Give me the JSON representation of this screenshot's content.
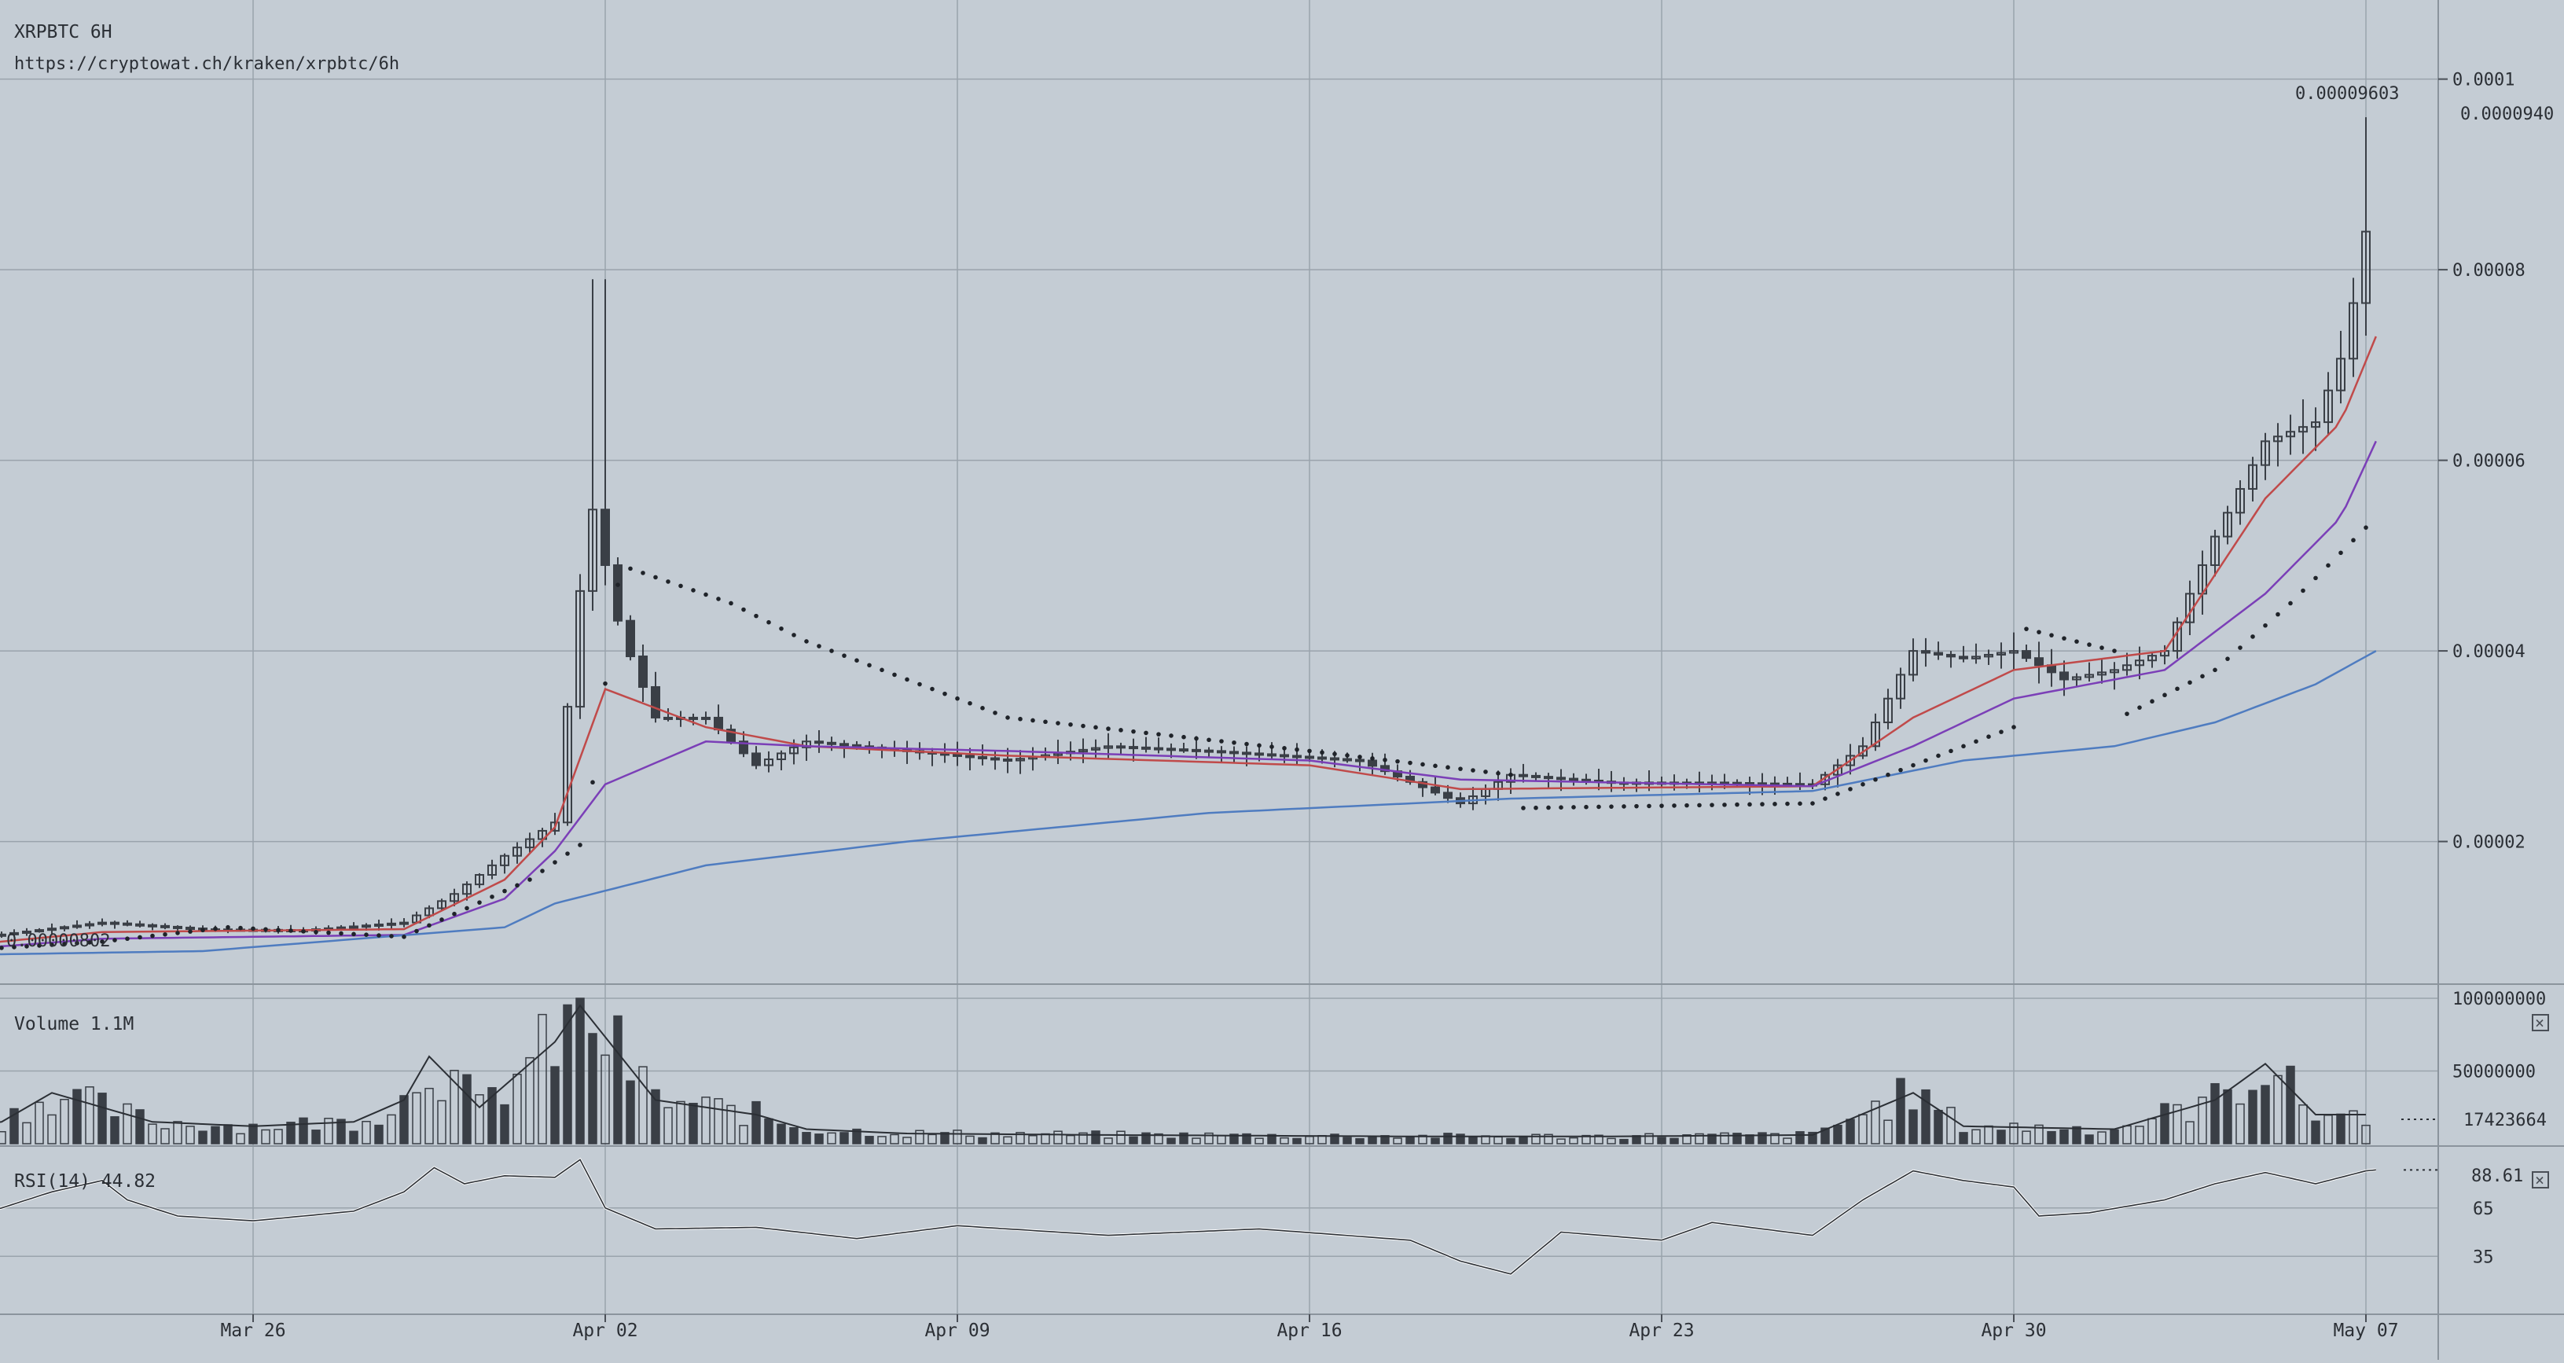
{
  "header": {
    "symbol_label": "XRPBTC 6H",
    "url": "https://cryptowat.ch/kraken/xrpbtc/6h"
  },
  "chart_data": [
    {
      "type": "candlestick",
      "title": "XRPBTC 6H",
      "x_ticks": [
        "Mar 26",
        "Apr 02",
        "Apr 09",
        "Apr 16",
        "Apr 23",
        "Apr 30",
        "May 07"
      ],
      "y_ticks": [
        "0.0001",
        "0.00008",
        "0.00006",
        "0.00004",
        "0.00002"
      ],
      "ylim": [
        5.2e-06,
        0.0001083
      ],
      "last_price_label": "0.0000940",
      "high_label": "0.00009603",
      "low_label": "0.00000802",
      "grid": true,
      "anchors": [
        {
          "day": 0,
          "price": 9e-06
        },
        {
          "day": 4,
          "price": 1.15e-05
        },
        {
          "day": 6,
          "price": 1.08e-05
        },
        {
          "day": 8,
          "price": 1.07e-05
        },
        {
          "day": 10,
          "price": 1.15e-05
        },
        {
          "day": 11,
          "price": 1.45e-05
        },
        {
          "day": 12,
          "price": 1.85e-05
        },
        {
          "day": 13,
          "price": 2.2e-05
        },
        {
          "day": 13.7,
          "price": 5.6e-05
        },
        {
          "day": 14.3,
          "price": 4.2e-05
        },
        {
          "day": 15,
          "price": 3.3e-05
        },
        {
          "day": 16,
          "price": 3.3e-05
        },
        {
          "day": 17,
          "price": 2.8e-05
        },
        {
          "day": 18,
          "price": 3.05e-05
        },
        {
          "day": 20,
          "price": 2.95e-05
        },
        {
          "day": 22,
          "price": 2.85e-05
        },
        {
          "day": 24,
          "price": 3e-05
        },
        {
          "day": 26,
          "price": 2.95e-05
        },
        {
          "day": 29,
          "price": 2.85e-05
        },
        {
          "day": 31,
          "price": 2.4e-05
        },
        {
          "day": 32,
          "price": 2.7e-05
        },
        {
          "day": 34,
          "price": 2.62e-05
        },
        {
          "day": 36,
          "price": 2.62e-05
        },
        {
          "day": 38,
          "price": 2.6e-05
        },
        {
          "day": 39,
          "price": 3e-05
        },
        {
          "day": 40,
          "price": 4e-05
        },
        {
          "day": 41,
          "price": 3.92e-05
        },
        {
          "day": 42,
          "price": 4e-05
        },
        {
          "day": 43,
          "price": 3.7e-05
        },
        {
          "day": 44,
          "price": 3.8e-05
        },
        {
          "day": 45,
          "price": 4e-05
        },
        {
          "day": 46,
          "price": 5.2e-05
        },
        {
          "day": 47,
          "price": 6.2e-05
        },
        {
          "day": 48,
          "price": 6.4e-05
        },
        {
          "day": 48.6,
          "price": 7.2e-05
        },
        {
          "day": 49.2,
          "price": 9e-05
        }
      ],
      "ema_fast": [
        {
          "day": 0,
          "price": 8.5e-06
        },
        {
          "day": 4,
          "price": 1.05e-05
        },
        {
          "day": 10,
          "price": 1.08e-05
        },
        {
          "day": 12,
          "price": 1.6e-05
        },
        {
          "day": 13,
          "price": 2.15e-05
        },
        {
          "day": 14,
          "price": 3.6e-05
        },
        {
          "day": 16,
          "price": 3.2e-05
        },
        {
          "day": 18,
          "price": 3e-05
        },
        {
          "day": 22,
          "price": 2.9e-05
        },
        {
          "day": 28,
          "price": 2.8e-05
        },
        {
          "day": 31,
          "price": 2.55e-05
        },
        {
          "day": 38,
          "price": 2.58e-05
        },
        {
          "day": 40,
          "price": 3.3e-05
        },
        {
          "day": 42,
          "price": 3.8e-05
        },
        {
          "day": 45,
          "price": 4e-05
        },
        {
          "day": 47,
          "price": 5.6e-05
        },
        {
          "day": 48.5,
          "price": 6.4e-05
        },
        {
          "day": 49.2,
          "price": 7.3e-05
        }
      ],
      "ema_mid": [
        {
          "day": 0,
          "price": 8.2e-06
        },
        {
          "day": 4,
          "price": 9.8e-06
        },
        {
          "day": 10,
          "price": 1.02e-05
        },
        {
          "day": 12,
          "price": 1.4e-05
        },
        {
          "day": 13,
          "price": 1.9e-05
        },
        {
          "day": 14,
          "price": 2.6e-05
        },
        {
          "day": 16,
          "price": 3.05e-05
        },
        {
          "day": 18,
          "price": 3e-05
        },
        {
          "day": 22,
          "price": 2.95e-05
        },
        {
          "day": 28,
          "price": 2.85e-05
        },
        {
          "day": 31,
          "price": 2.65e-05
        },
        {
          "day": 38,
          "price": 2.58e-05
        },
        {
          "day": 40,
          "price": 3e-05
        },
        {
          "day": 42,
          "price": 3.5e-05
        },
        {
          "day": 45,
          "price": 3.8e-05
        },
        {
          "day": 47,
          "price": 4.6e-05
        },
        {
          "day": 48.5,
          "price": 5.4e-05
        },
        {
          "day": 49.2,
          "price": 6.2e-05
        }
      ],
      "ema_slow": [
        {
          "day": 0,
          "price": 8e-06
        },
        {
          "day": 6,
          "price": 8.5e-06
        },
        {
          "day": 12,
          "price": 1.1e-05
        },
        {
          "day": 13,
          "price": 1.35e-05
        },
        {
          "day": 16,
          "price": 1.75e-05
        },
        {
          "day": 20,
          "price": 2e-05
        },
        {
          "day": 26,
          "price": 2.3e-05
        },
        {
          "day": 32,
          "price": 2.45e-05
        },
        {
          "day": 38,
          "price": 2.53e-05
        },
        {
          "day": 41,
          "price": 2.85e-05
        },
        {
          "day": 44,
          "price": 3e-05
        },
        {
          "day": 46,
          "price": 3.25e-05
        },
        {
          "day": 48,
          "price": 3.65e-05
        },
        {
          "day": 49.2,
          "price": 4e-05
        }
      ],
      "sar": [
        {
          "day": 1,
          "price": 8.5e-06
        },
        {
          "day": 4,
          "price": 9.5e-06
        },
        {
          "day": 6.5,
          "price": 1.1e-05
        },
        {
          "day": 10,
          "price": 1e-05
        },
        {
          "day": 12.5,
          "price": 1.6e-05
        },
        {
          "day": 13.6,
          "price": 2e-05
        },
        {
          "day": 14.3,
          "price": 4.9e-05
        },
        {
          "day": 16.5,
          "price": 4.5e-05
        },
        {
          "day": 18,
          "price": 4.1e-05
        },
        {
          "day": 22,
          "price": 3.3e-05
        },
        {
          "day": 28,
          "price": 2.95e-05
        },
        {
          "day": 32,
          "price": 2.7e-05
        },
        {
          "day": 32.1,
          "price": 2.35e-05
        },
        {
          "day": 38,
          "price": 2.4e-05
        },
        {
          "day": 41,
          "price": 3e-05
        },
        {
          "day": 42,
          "price": 3.2e-05
        },
        {
          "day": 42.1,
          "price": 4.25e-05
        },
        {
          "day": 44,
          "price": 4e-05
        },
        {
          "day": 44.1,
          "price": 3.3e-05
        },
        {
          "day": 46,
          "price": 3.8e-05
        },
        {
          "day": 47.5,
          "price": 4.5e-05
        },
        {
          "day": 49.2,
          "price": 5.4e-05
        }
      ]
    },
    {
      "type": "bar",
      "title": "Volume",
      "label": "Volume 1.1M",
      "y_ticks": [
        "100000000",
        "50000000"
      ],
      "current_label": "17423664",
      "ylim": [
        0,
        100000000
      ],
      "levels": [
        {
          "day": 0,
          "volume": 10000000
        },
        {
          "day": 2,
          "volume": 15000000
        },
        {
          "day": 3,
          "volume": 35000000
        },
        {
          "day": 5,
          "volume": 15000000
        },
        {
          "day": 7,
          "volume": 12000000
        },
        {
          "day": 9,
          "volume": 15000000
        },
        {
          "day": 10,
          "volume": 30000000
        },
        {
          "day": 10.5,
          "volume": 60000000
        },
        {
          "day": 11.5,
          "volume": 25000000
        },
        {
          "day": 13,
          "volume": 70000000
        },
        {
          "day": 13.5,
          "volume": 95000000
        },
        {
          "day": 15,
          "volume": 30000000
        },
        {
          "day": 16,
          "volume": 25000000
        },
        {
          "day": 17,
          "volume": 20000000
        },
        {
          "day": 18,
          "volume": 10000000
        },
        {
          "day": 20,
          "volume": 7000000
        },
        {
          "day": 24,
          "volume": 6000000
        },
        {
          "day": 30,
          "volume": 5000000
        },
        {
          "day": 34,
          "volume": 5000000
        },
        {
          "day": 38,
          "volume": 6000000
        },
        {
          "day": 40,
          "volume": 35000000
        },
        {
          "day": 41,
          "volume": 12000000
        },
        {
          "day": 44,
          "volume": 10000000
        },
        {
          "day": 46,
          "volume": 30000000
        },
        {
          "day": 47,
          "volume": 55000000
        },
        {
          "day": 48,
          "volume": 20000000
        },
        {
          "day": 49.2,
          "volume": 20000000
        }
      ]
    },
    {
      "type": "line",
      "title": "RSI(14)",
      "label": "RSI(14)  44.82",
      "y_ticks": [
        "65",
        "35"
      ],
      "current_label": "88.61",
      "ylim": [
        0,
        100
      ],
      "points": [
        {
          "day": 0,
          "rsi": 60
        },
        {
          "day": 1,
          "rsi": 57
        },
        {
          "day": 2,
          "rsi": 65
        },
        {
          "day": 3,
          "rsi": 75
        },
        {
          "day": 4,
          "rsi": 82
        },
        {
          "day": 4.5,
          "rsi": 70
        },
        {
          "day": 5.5,
          "rsi": 60
        },
        {
          "day": 7,
          "rsi": 57
        },
        {
          "day": 9,
          "rsi": 63
        },
        {
          "day": 10,
          "rsi": 75
        },
        {
          "day": 10.6,
          "rsi": 90
        },
        {
          "day": 11.2,
          "rsi": 80
        },
        {
          "day": 12,
          "rsi": 85
        },
        {
          "day": 13,
          "rsi": 84
        },
        {
          "day": 13.5,
          "rsi": 95
        },
        {
          "day": 14,
          "rsi": 65
        },
        {
          "day": 15,
          "rsi": 52
        },
        {
          "day": 17,
          "rsi": 53
        },
        {
          "day": 19,
          "rsi": 46
        },
        {
          "day": 21,
          "rsi": 54
        },
        {
          "day": 24,
          "rsi": 48
        },
        {
          "day": 27,
          "rsi": 52
        },
        {
          "day": 30,
          "rsi": 45
        },
        {
          "day": 31,
          "rsi": 32
        },
        {
          "day": 32,
          "rsi": 24
        },
        {
          "day": 33,
          "rsi": 50
        },
        {
          "day": 35,
          "rsi": 45
        },
        {
          "day": 36,
          "rsi": 56
        },
        {
          "day": 38,
          "rsi": 48
        },
        {
          "day": 39,
          "rsi": 70
        },
        {
          "day": 40,
          "rsi": 88
        },
        {
          "day": 41,
          "rsi": 82
        },
        {
          "day": 42,
          "rsi": 78
        },
        {
          "day": 42.5,
          "rsi": 60
        },
        {
          "day": 43.5,
          "rsi": 62
        },
        {
          "day": 45,
          "rsi": 70
        },
        {
          "day": 46,
          "rsi": 80
        },
        {
          "day": 47,
          "rsi": 87
        },
        {
          "day": 48,
          "rsi": 80
        },
        {
          "day": 49,
          "rsi": 88
        },
        {
          "day": 49.2,
          "rsi": 88.61
        }
      ]
    }
  ]
}
